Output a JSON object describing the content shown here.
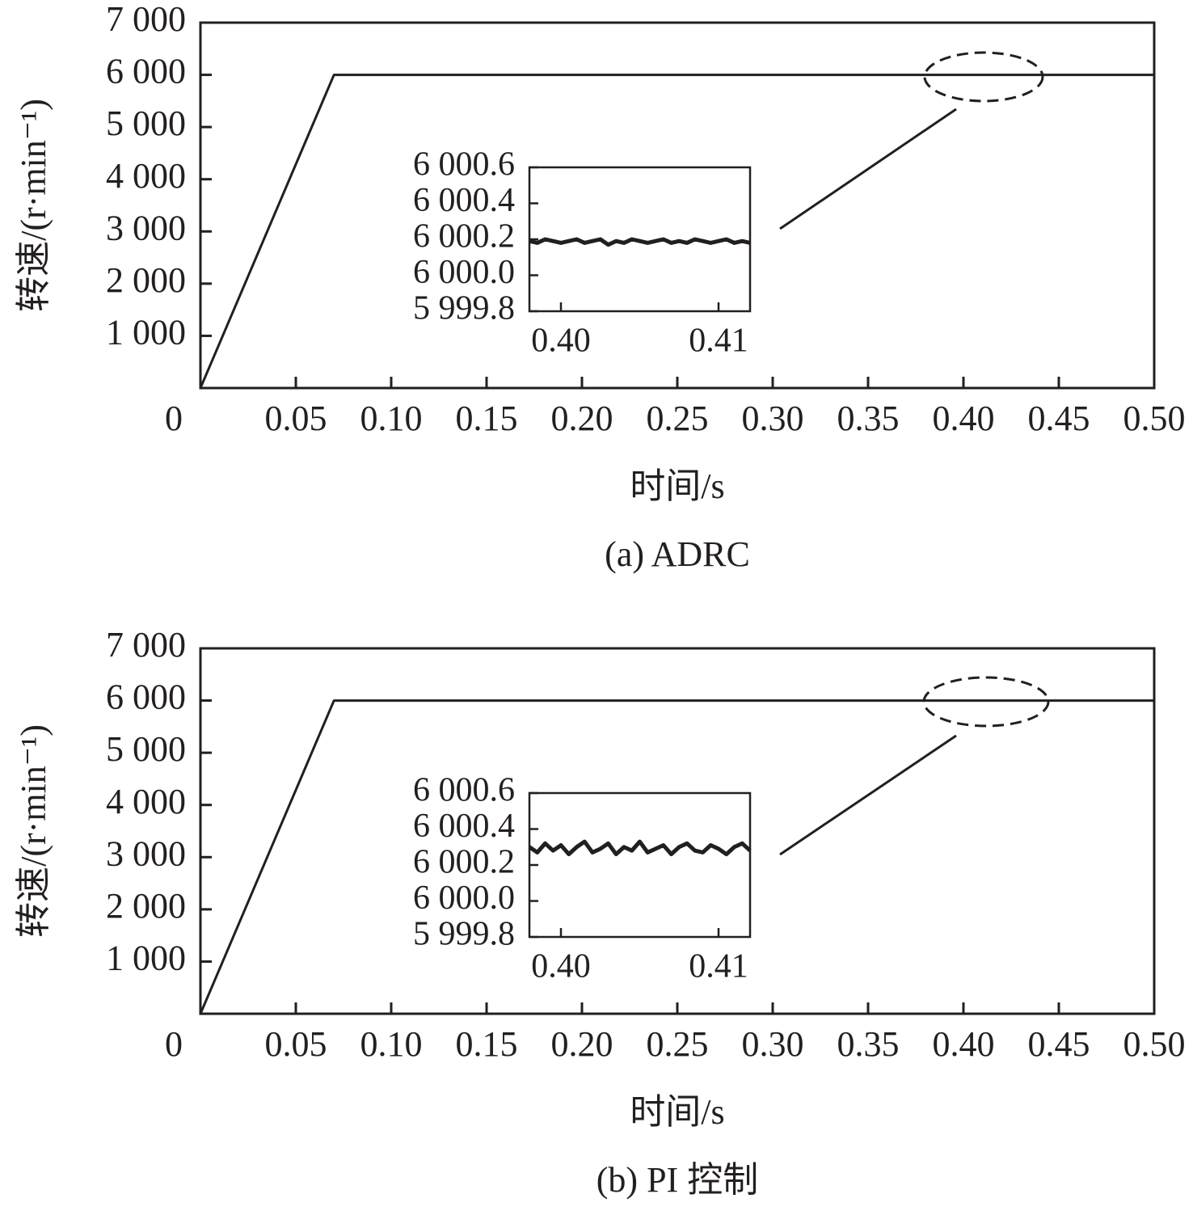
{
  "chart_data": [
    {
      "type": "line",
      "caption": "(a) ADRC",
      "xlabel": "时间/s",
      "ylabel": "转速/(r·min⁻¹)",
      "x": [
        0,
        0.07,
        0.5
      ],
      "values": [
        0,
        6000,
        6000
      ],
      "color": "#231f20",
      "xlim": [
        0,
        0.5
      ],
      "ylim": [
        0,
        7000
      ],
      "xticks": [
        0,
        0.05,
        {
          "value": 0.1,
          "label": "0.10"
        },
        0.15,
        {
          "value": 0.2,
          "label": "0.20"
        },
        0.25,
        {
          "value": 0.3,
          "label": "0.30"
        },
        0.35,
        {
          "value": 0.4,
          "label": "0.40"
        },
        0.45,
        {
          "value": 0.5,
          "label": "0.50"
        }
      ],
      "yticks": [
        {
          "value": 1000,
          "label": "1 000"
        },
        {
          "value": 2000,
          "label": "2 000"
        },
        {
          "value": 3000,
          "label": "3 000"
        },
        {
          "value": 4000,
          "label": "4 000"
        },
        {
          "value": 5000,
          "label": "5 000"
        },
        {
          "value": 6000,
          "label": "6 000"
        },
        {
          "value": 7000,
          "label": "7 000"
        }
      ],
      "inset": {
        "type": "line",
        "color": "#231f20",
        "x": [
          0.398,
          0.3985,
          0.399,
          0.3995,
          0.4,
          0.4005,
          0.401,
          0.4015,
          0.402,
          0.4025,
          0.403,
          0.4035,
          0.404,
          0.4045,
          0.405,
          0.4055,
          0.406,
          0.4065,
          0.407,
          0.4075,
          0.408,
          0.4085,
          0.409,
          0.4095,
          0.41,
          0.4105,
          0.411,
          0.4115,
          0.412
        ],
        "values": [
          6000.19,
          6000.18,
          6000.2,
          6000.19,
          6000.18,
          6000.19,
          6000.2,
          6000.18,
          6000.19,
          6000.2,
          6000.17,
          6000.19,
          6000.18,
          6000.2,
          6000.19,
          6000.18,
          6000.19,
          6000.2,
          6000.18,
          6000.19,
          6000.18,
          6000.2,
          6000.19,
          6000.18,
          6000.19,
          6000.2,
          6000.18,
          6000.19,
          6000.18
        ],
        "xlim": [
          0.398,
          0.412
        ],
        "ylim": [
          5999.8,
          6000.6
        ],
        "xticks": [
          {
            "value": 0.4,
            "label": "0.40"
          },
          {
            "value": 0.41,
            "label": "0.41"
          }
        ],
        "yticks": [
          {
            "value": 5999.8,
            "label": "5 999.8"
          },
          {
            "value": 6000.0,
            "label": "6 000.0"
          },
          {
            "value": 6000.2,
            "label": "6 000.2"
          },
          {
            "value": 6000.4,
            "label": "6 000.4"
          },
          {
            "value": 6000.6,
            "label": "6 000.6"
          }
        ]
      }
    },
    {
      "type": "line",
      "caption": "(b) PI 控制",
      "xlabel": "时间/s",
      "ylabel": "转速/(r·min⁻¹)",
      "x": [
        0,
        0.07,
        0.5
      ],
      "values": [
        0,
        6000,
        6000
      ],
      "color": "#231f20",
      "xlim": [
        0,
        0.5
      ],
      "ylim": [
        0,
        7000
      ],
      "xticks": [
        0,
        0.05,
        {
          "value": 0.1,
          "label": "0.10"
        },
        0.15,
        {
          "value": 0.2,
          "label": "0.20"
        },
        0.25,
        {
          "value": 0.3,
          "label": "0.30"
        },
        0.35,
        {
          "value": 0.4,
          "label": "0.40"
        },
        0.45,
        {
          "value": 0.5,
          "label": "0.50"
        }
      ],
      "yticks": [
        {
          "value": 1000,
          "label": "1 000"
        },
        {
          "value": 2000,
          "label": "2 000"
        },
        {
          "value": 3000,
          "label": "3 000"
        },
        {
          "value": 4000,
          "label": "4 000"
        },
        {
          "value": 5000,
          "label": "5 000"
        },
        {
          "value": 6000,
          "label": "6 000"
        },
        {
          "value": 7000,
          "label": "7 000"
        }
      ],
      "inset": {
        "type": "line",
        "color": "#231f20",
        "x": [
          0.398,
          0.3985,
          0.399,
          0.3995,
          0.4,
          0.4005,
          0.401,
          0.4015,
          0.402,
          0.4025,
          0.403,
          0.4035,
          0.404,
          0.4045,
          0.405,
          0.4055,
          0.406,
          0.4065,
          0.407,
          0.4075,
          0.408,
          0.4085,
          0.409,
          0.4095,
          0.41,
          0.4105,
          0.411,
          0.4115,
          0.412
        ],
        "values": [
          6000.3,
          6000.27,
          6000.32,
          6000.28,
          6000.31,
          6000.26,
          6000.3,
          6000.33,
          6000.27,
          6000.29,
          6000.32,
          6000.26,
          6000.3,
          6000.28,
          6000.33,
          6000.27,
          6000.29,
          6000.31,
          6000.26,
          6000.3,
          6000.32,
          6000.28,
          6000.27,
          6000.31,
          6000.29,
          6000.26,
          6000.3,
          6000.32,
          6000.28
        ],
        "xlim": [
          0.398,
          0.412
        ],
        "ylim": [
          5999.8,
          6000.6
        ],
        "xticks": [
          {
            "value": 0.4,
            "label": "0.40"
          },
          {
            "value": 0.41,
            "label": "0.41"
          }
        ],
        "yticks": [
          {
            "value": 5999.8,
            "label": "5 999.8"
          },
          {
            "value": 6000.0,
            "label": "6 000.0"
          },
          {
            "value": 6000.2,
            "label": "6 000.2"
          },
          {
            "value": 6000.4,
            "label": "6 000.4"
          },
          {
            "value": 6000.6,
            "label": "6 000.6"
          }
        ]
      }
    }
  ]
}
